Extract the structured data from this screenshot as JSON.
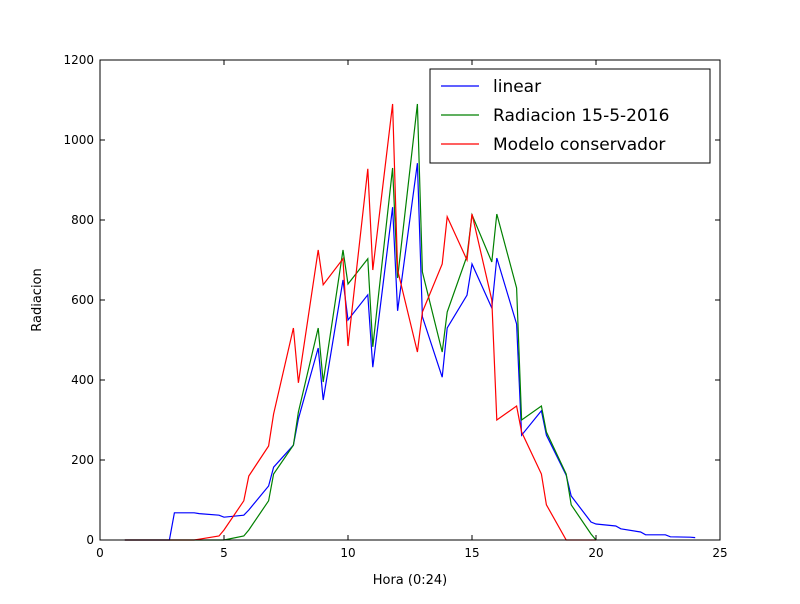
{
  "chart_data": {
    "type": "line",
    "title": "",
    "xlabel": "Hora (0:24)",
    "ylabel": "Radiacion",
    "xlim": [
      0,
      25
    ],
    "ylim": [
      0,
      1200
    ],
    "xticks": [
      0,
      5,
      10,
      15,
      20,
      25
    ],
    "yticks": [
      0,
      200,
      400,
      600,
      800,
      1000,
      1200
    ],
    "grid": false,
    "legend_position": "top-right",
    "series": [
      {
        "name": "linear",
        "color": "#0000ff",
        "points": [
          [
            1,
            0
          ],
          [
            2,
            0
          ],
          [
            2.8,
            0
          ],
          [
            3,
            68
          ],
          [
            3.8,
            68
          ],
          [
            4,
            66
          ],
          [
            4.8,
            62
          ],
          [
            5,
            57
          ],
          [
            5.8,
            62
          ],
          [
            6,
            75
          ],
          [
            6.8,
            135
          ],
          [
            7,
            182
          ],
          [
            7.8,
            237
          ],
          [
            8,
            303
          ],
          [
            8.8,
            480
          ],
          [
            9,
            350
          ],
          [
            9.8,
            650
          ],
          [
            10,
            550
          ],
          [
            10.8,
            613
          ],
          [
            11,
            432
          ],
          [
            11.8,
            832
          ],
          [
            12,
            573
          ],
          [
            12.8,
            942
          ],
          [
            13,
            558
          ],
          [
            13.8,
            407
          ],
          [
            14,
            530
          ],
          [
            14.8,
            612
          ],
          [
            15,
            690
          ],
          [
            15.8,
            580
          ],
          [
            16,
            705
          ],
          [
            16.8,
            540
          ],
          [
            17,
            262
          ],
          [
            17.8,
            323
          ],
          [
            18,
            262
          ],
          [
            18.8,
            162
          ],
          [
            19,
            110
          ],
          [
            19.8,
            45
          ],
          [
            20,
            40
          ],
          [
            20.8,
            35
          ],
          [
            21,
            28
          ],
          [
            21.8,
            20
          ],
          [
            22,
            13
          ],
          [
            22.8,
            13
          ],
          [
            23,
            8
          ],
          [
            23.8,
            7
          ],
          [
            24,
            6
          ]
        ]
      },
      {
        "name": "Radiacion 15-5-2016",
        "color": "#008000",
        "points": [
          [
            1,
            0
          ],
          [
            2,
            0
          ],
          [
            3,
            0
          ],
          [
            4,
            0
          ],
          [
            5,
            0
          ],
          [
            5.8,
            10
          ],
          [
            6,
            25
          ],
          [
            6.8,
            98
          ],
          [
            7,
            165
          ],
          [
            7.8,
            237
          ],
          [
            8,
            320
          ],
          [
            8.8,
            530
          ],
          [
            9,
            395
          ],
          [
            9.8,
            725
          ],
          [
            10,
            640
          ],
          [
            10.8,
            703
          ],
          [
            11,
            483
          ],
          [
            11.8,
            930
          ],
          [
            12,
            655
          ],
          [
            12.8,
            1090
          ],
          [
            13,
            670
          ],
          [
            13.8,
            470
          ],
          [
            14,
            570
          ],
          [
            14.8,
            710
          ],
          [
            15,
            813
          ],
          [
            15.8,
            695
          ],
          [
            16,
            815
          ],
          [
            16.8,
            630
          ],
          [
            17,
            300
          ],
          [
            17.8,
            335
          ],
          [
            18,
            270
          ],
          [
            18.8,
            165
          ],
          [
            19,
            88
          ],
          [
            19.8,
            15
          ],
          [
            20,
            0
          ]
        ]
      },
      {
        "name": "Modelo conservador",
        "color": "#ff0000",
        "points": [
          [
            1,
            0
          ],
          [
            2,
            0
          ],
          [
            3,
            0
          ],
          [
            3.8,
            0
          ],
          [
            4,
            2
          ],
          [
            4.8,
            10
          ],
          [
            5,
            25
          ],
          [
            5.8,
            98
          ],
          [
            6,
            160
          ],
          [
            6.8,
            235
          ],
          [
            7,
            315
          ],
          [
            7.8,
            530
          ],
          [
            8,
            393
          ],
          [
            8.8,
            725
          ],
          [
            9,
            638
          ],
          [
            9.8,
            703
          ],
          [
            10,
            485
          ],
          [
            10.8,
            928
          ],
          [
            11,
            675
          ],
          [
            11.8,
            1090
          ],
          [
            12,
            675
          ],
          [
            12.8,
            470
          ],
          [
            13,
            570
          ],
          [
            13.8,
            690
          ],
          [
            14,
            808
          ],
          [
            14.8,
            700
          ],
          [
            15,
            815
          ],
          [
            15.8,
            600
          ],
          [
            16,
            300
          ],
          [
            16.8,
            335
          ],
          [
            17,
            270
          ],
          [
            17.8,
            165
          ],
          [
            18,
            88
          ],
          [
            18.8,
            0
          ],
          [
            19,
            0
          ],
          [
            20,
            0
          ]
        ]
      }
    ]
  }
}
